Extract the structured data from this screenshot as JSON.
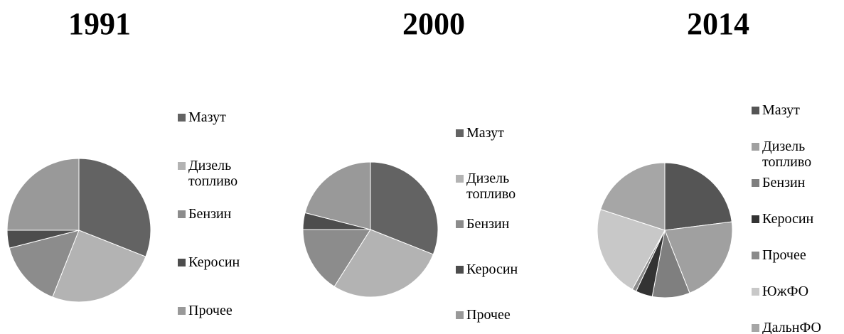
{
  "chart_data": [
    {
      "type": "pie",
      "title": "1991",
      "categories": [
        "Мазут",
        "Дизель топливо",
        "Бензин",
        "Керосин",
        "Прочее"
      ],
      "values": [
        31,
        25,
        15,
        4,
        25
      ],
      "colors": [
        "#636363",
        "#b3b3b3",
        "#8c8c8c",
        "#4d4d4d",
        "#999999"
      ]
    },
    {
      "type": "pie",
      "title": "2000",
      "categories": [
        "Мазут",
        "Дизель топливо",
        "Бензин",
        "Керосин",
        "Прочее"
      ],
      "values": [
        31,
        28,
        16,
        4,
        21
      ],
      "colors": [
        "#636363",
        "#b3b3b3",
        "#8c8c8c",
        "#4d4d4d",
        "#999999"
      ]
    },
    {
      "type": "pie",
      "title": "2014",
      "categories": [
        "Мазут",
        "Дизель топливо",
        "Бензин",
        "Керосин",
        "Прочее",
        "ЮжФО",
        "ДальнФО"
      ],
      "values": [
        23,
        21,
        9,
        4,
        1,
        22,
        20
      ],
      "colors": [
        "#555555",
        "#a0a0a0",
        "#7f7f7f",
        "#333333",
        "#8a8a8a",
        "#c8c8c8",
        "#a6a6a6"
      ]
    }
  ]
}
